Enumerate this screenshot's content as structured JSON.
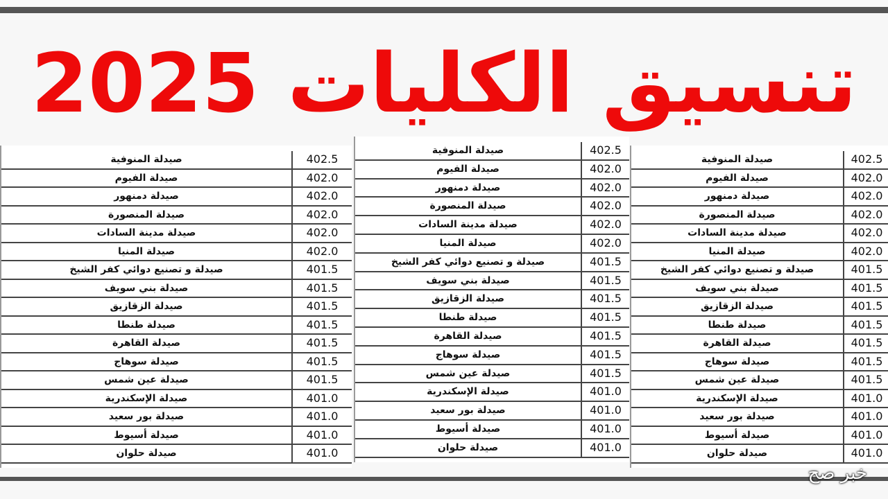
{
  "title": "تنسيق الكليات 2025",
  "table": {
    "rows": [
      [
        "صيدلة المنوفية",
        "402.5"
      ],
      [
        "صيدلة الفيوم",
        "402.0"
      ],
      [
        "صيدلة دمنهور",
        "402.0"
      ],
      [
        "صيدلة المنصورة",
        "402.0"
      ],
      [
        "صيدلة مدينة السادات",
        "402.0"
      ],
      [
        "صيدلة المنيا",
        "402.0"
      ],
      [
        "صيدلة و تصنيع دوائي كفر الشيخ",
        "401.5"
      ],
      [
        "صيدلة بني سويف",
        "401.5"
      ],
      [
        "صيدلة الزقازيق",
        "401.5"
      ],
      [
        "صيدلة طنطا",
        "401.5"
      ],
      [
        "صيدلة القاهرة",
        "401.5"
      ],
      [
        "صيدلة سوهاج",
        "401.5"
      ],
      [
        "صيدلة عين شمس",
        "401.5"
      ],
      [
        "صيدلة الإسكندرية",
        "401.0"
      ],
      [
        "صيدلة بور سعيد",
        "401.0"
      ],
      [
        "صيدلة أسيوط",
        "401.0"
      ],
      [
        "صيدلة حلوان",
        "401.0"
      ]
    ]
  },
  "watermark": "خبر صح"
}
